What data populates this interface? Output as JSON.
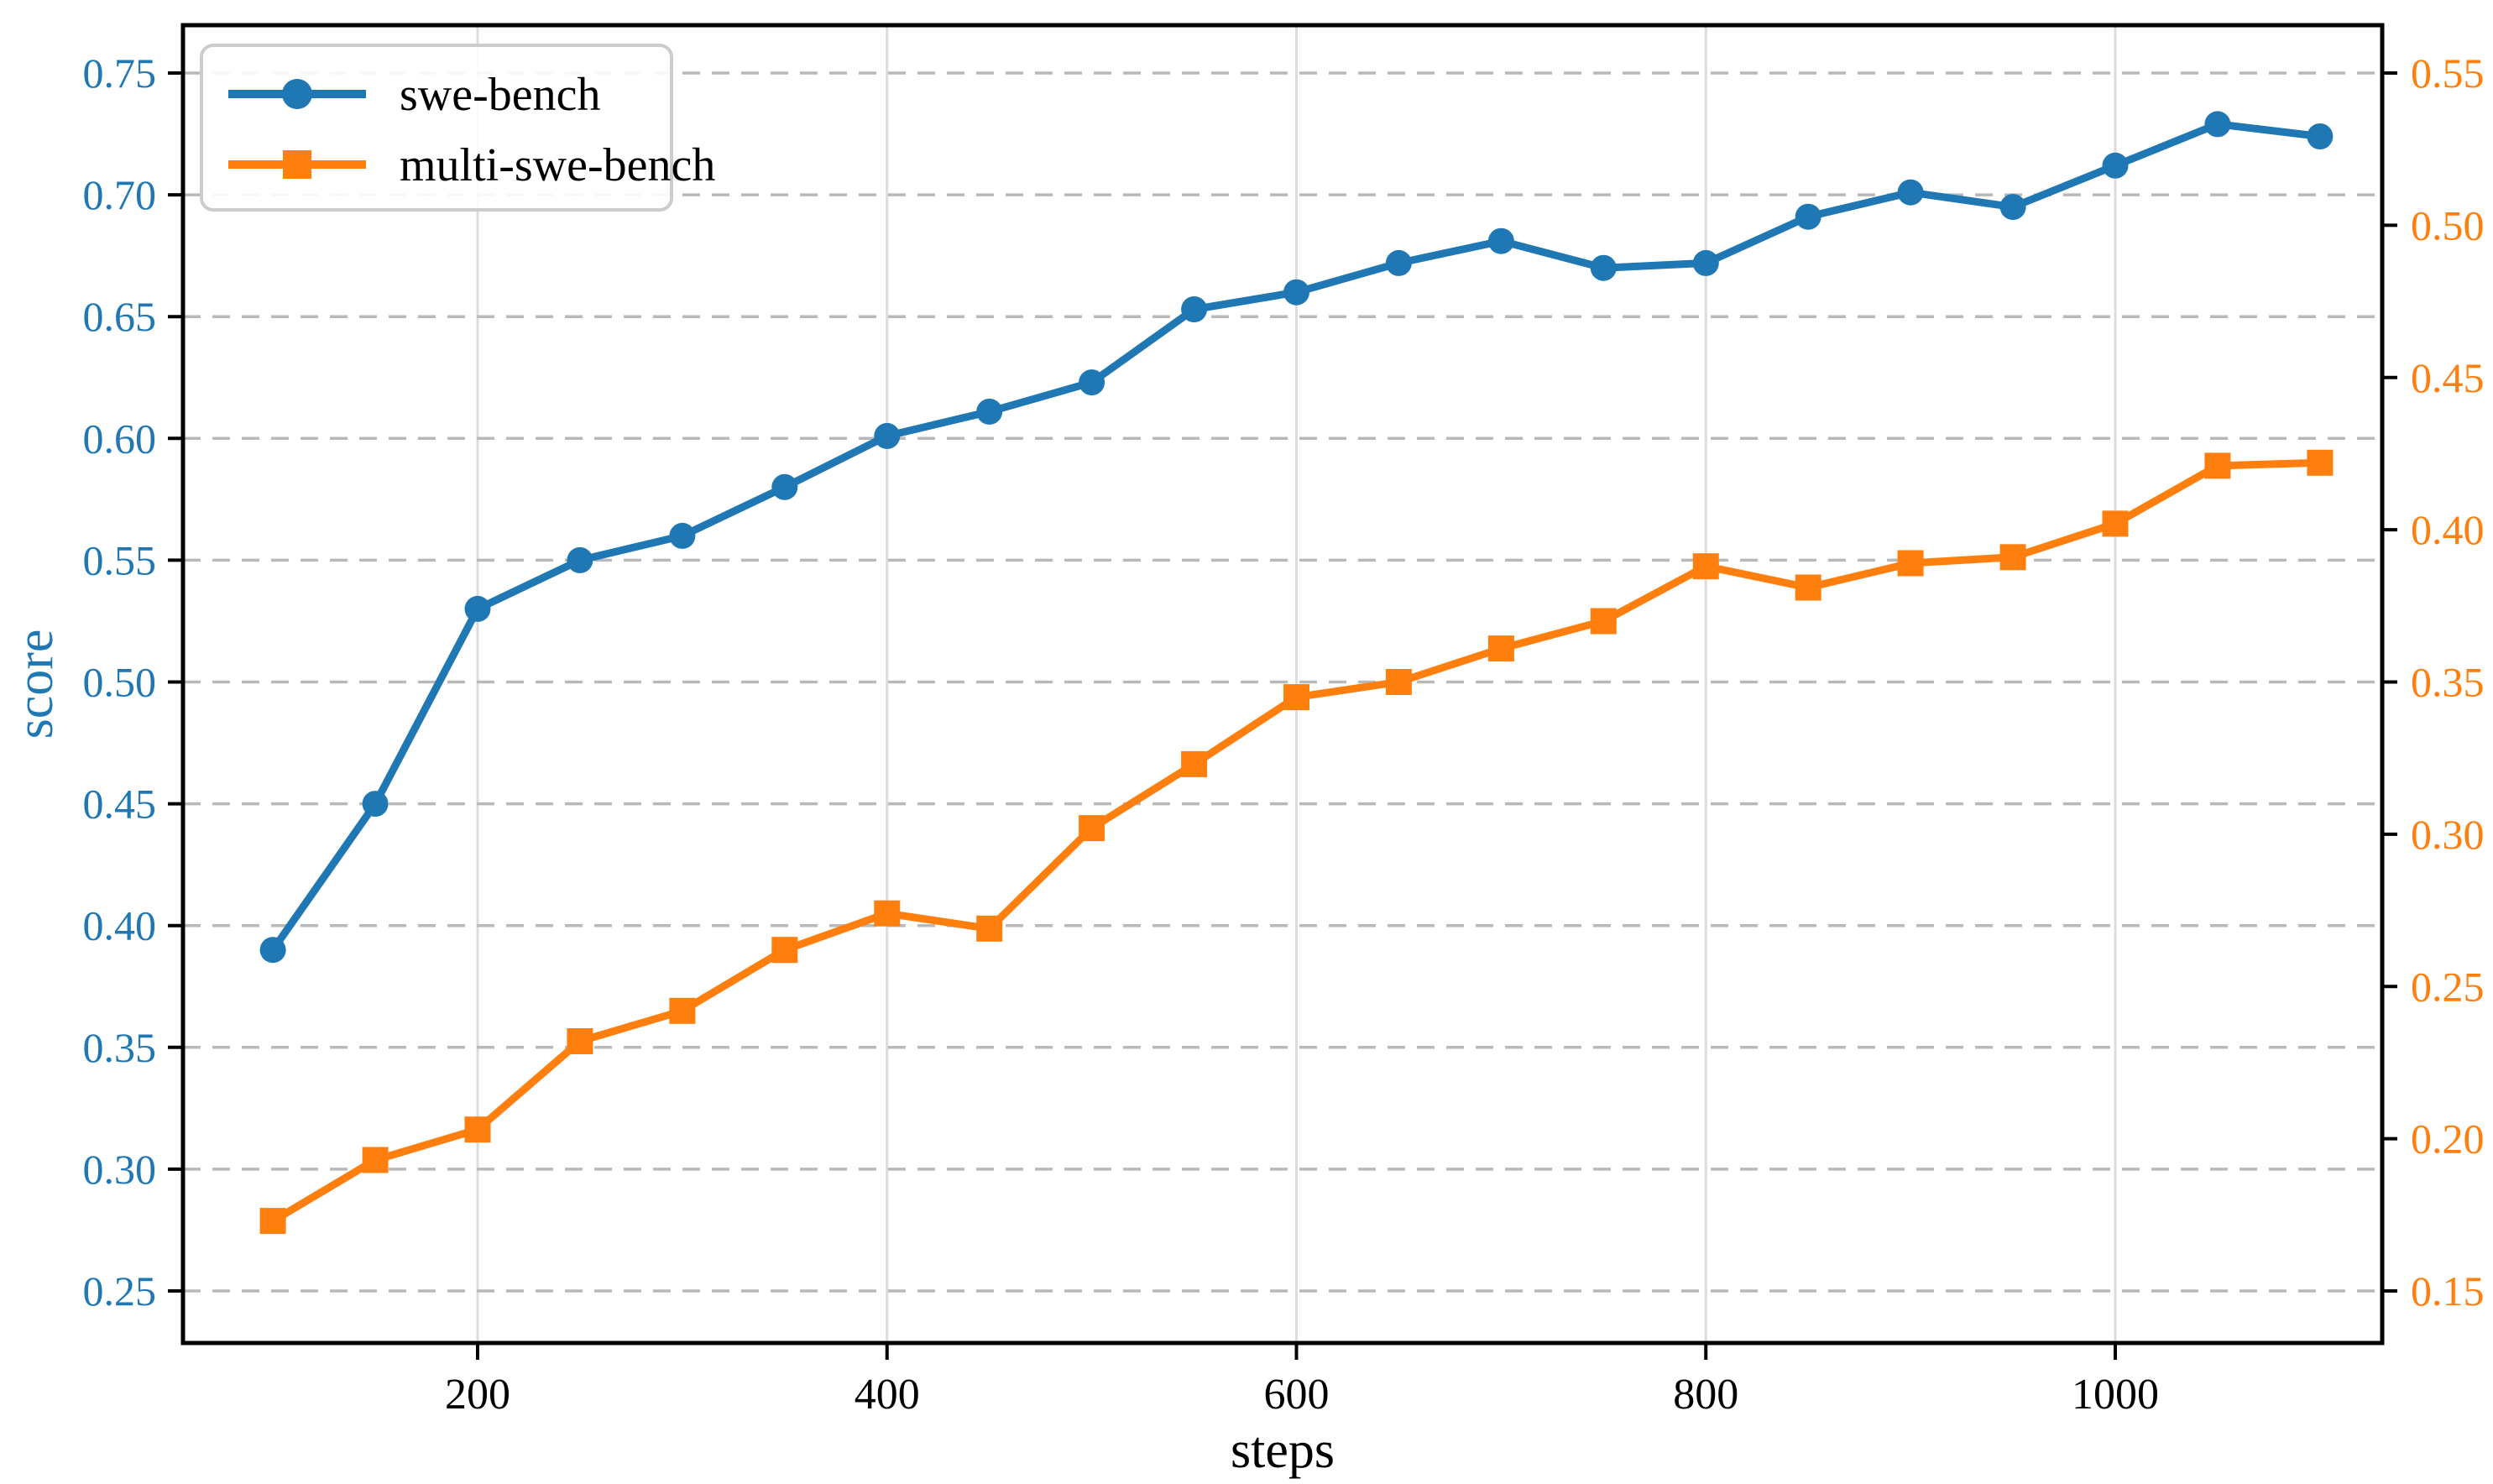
{
  "chart_data": {
    "type": "line",
    "title": "",
    "xlabel": "steps",
    "ylabel_left": "score",
    "x": [
      100,
      150,
      200,
      250,
      300,
      350,
      400,
      450,
      500,
      550,
      600,
      650,
      700,
      750,
      800,
      850,
      900,
      950,
      1000,
      1050,
      1100
    ],
    "series": [
      {
        "name": "swe-bench",
        "axis": "left",
        "color": "#1f77b4",
        "marker": "circle",
        "values": [
          0.39,
          0.45,
          0.53,
          0.55,
          0.56,
          0.58,
          0.601,
          0.611,
          0.623,
          0.653,
          0.66,
          0.672,
          0.681,
          0.67,
          0.672,
          0.691,
          0.701,
          0.695,
          0.712,
          0.729,
          0.724
        ]
      },
      {
        "name": "multi-swe-bench",
        "axis": "right",
        "color": "#ff7f0e",
        "marker": "square",
        "values": [
          0.173,
          0.193,
          0.203,
          0.232,
          0.242,
          0.262,
          0.274,
          0.269,
          0.302,
          0.323,
          0.345,
          0.35,
          0.361,
          0.37,
          0.388,
          0.381,
          0.389,
          0.391,
          0.402,
          0.421,
          0.422
        ]
      }
    ],
    "left_axis": {
      "ticks": [
        0.75,
        0.7,
        0.65,
        0.6,
        0.55,
        0.5,
        0.45,
        0.4,
        0.35,
        0.3,
        0.25
      ],
      "range": [
        0.25,
        0.75
      ],
      "color": "#1f77b4"
    },
    "right_axis": {
      "ticks": [
        0.55,
        0.5,
        0.45,
        0.4,
        0.35,
        0.3,
        0.25,
        0.2,
        0.15
      ],
      "range": [
        0.15,
        0.55
      ],
      "color": "#ff7f0e"
    },
    "x_ticks": [
      200,
      400,
      600,
      800,
      1000
    ],
    "grid": {
      "horizontal": "dashed",
      "vertical": "solid",
      "h_color": "#b9b9b9",
      "v_color": "#dcdcdc"
    },
    "legend": {
      "position": "top-left",
      "entries": [
        "swe-bench",
        "multi-swe-bench"
      ]
    },
    "spine_color": "#000000",
    "background": "#ffffff"
  }
}
